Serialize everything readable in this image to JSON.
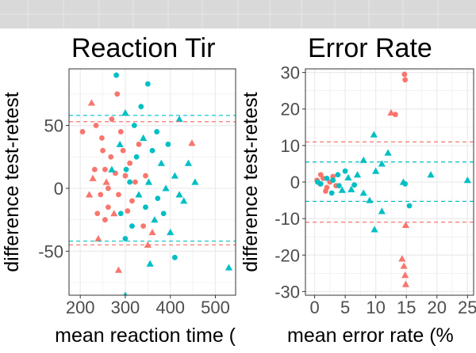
{
  "colors": {
    "group_a": "#F8766D",
    "group_b": "#00BFC4",
    "strip_bg": "#D9D9D9",
    "panel_bg": "#FFFFFF",
    "grid": "#EBEBEB",
    "border": "#333333"
  },
  "chart_data": [
    {
      "type": "scatter",
      "title": "Reaction Tir",
      "xlabel": "mean reaction time (",
      "ylabel": "difference test-retest",
      "xlim": [
        175,
        545
      ],
      "ylim": [
        -85,
        95
      ],
      "xticks": [
        {
          "v": 200,
          "label": "200"
        },
        {
          "v": 300,
          "label": "300"
        },
        {
          "v": 400,
          "label": "400"
        },
        {
          "v": 500,
          "label": "500"
        }
      ],
      "yticks": [
        {
          "v": -50,
          "label": "-50"
        },
        {
          "v": 0,
          "label": "0"
        },
        {
          "v": 50,
          "label": "50"
        }
      ],
      "grid": true,
      "reference_lines": [
        {
          "y": 53,
          "color": "#F8766D",
          "style": "dashed"
        },
        {
          "y": 58,
          "color": "#00BFC4",
          "style": "dashed"
        },
        {
          "y": -42,
          "color": "#00BFC4",
          "style": "dashed"
        },
        {
          "y": -45,
          "color": "#F8766D",
          "style": "dashed"
        }
      ],
      "series": [
        {
          "color": "#F8766D",
          "points": [
            {
              "x": 205,
              "y": 45,
              "shape": "circle"
            },
            {
              "x": 225,
              "y": 68,
              "shape": "triangle"
            },
            {
              "x": 235,
              "y": 50,
              "shape": "circle"
            },
            {
              "x": 228,
              "y": 8,
              "shape": "triangle"
            },
            {
              "x": 220,
              "y": -5,
              "shape": "triangle"
            },
            {
              "x": 240,
              "y": -40,
              "shape": "triangle"
            },
            {
              "x": 250,
              "y": 30,
              "shape": "circle"
            },
            {
              "x": 255,
              "y": 15,
              "shape": "circle"
            },
            {
              "x": 262,
              "y": 0,
              "shape": "circle"
            },
            {
              "x": 245,
              "y": -5,
              "shape": "circle"
            },
            {
              "x": 270,
              "y": 55,
              "shape": "circle"
            },
            {
              "x": 282,
              "y": 75,
              "shape": "circle"
            },
            {
              "x": 290,
              "y": 45,
              "shape": "circle"
            },
            {
              "x": 262,
              "y": -15,
              "shape": "circle"
            },
            {
              "x": 275,
              "y": -20,
              "shape": "triangle"
            },
            {
              "x": 255,
              "y": -25,
              "shape": "circle"
            },
            {
              "x": 285,
              "y": -5,
              "shape": "circle"
            },
            {
              "x": 300,
              "y": 10,
              "shape": "circle"
            },
            {
              "x": 310,
              "y": 20,
              "shape": "circle"
            },
            {
              "x": 295,
              "y": 30,
              "shape": "circle"
            },
            {
              "x": 315,
              "y": -10,
              "shape": "circle"
            },
            {
              "x": 330,
              "y": 35,
              "shape": "circle"
            },
            {
              "x": 340,
              "y": -30,
              "shape": "circle"
            },
            {
              "x": 350,
              "y": -45,
              "shape": "triangle"
            },
            {
              "x": 285,
              "y": -65,
              "shape": "triangle"
            },
            {
              "x": 360,
              "y": -35,
              "shape": "triangle"
            },
            {
              "x": 448,
              "y": 36,
              "shape": "triangle"
            },
            {
              "x": 345,
              "y": 10,
              "shape": "circle"
            },
            {
              "x": 248,
              "y": 40,
              "shape": "circle"
            },
            {
              "x": 268,
              "y": 25,
              "shape": "circle"
            },
            {
              "x": 232,
              "y": 15,
              "shape": "circle"
            },
            {
              "x": 238,
              "y": -20,
              "shape": "circle"
            },
            {
              "x": 258,
              "y": 5,
              "shape": "triangle"
            },
            {
              "x": 278,
              "y": 12,
              "shape": "circle"
            },
            {
              "x": 305,
              "y": -18,
              "shape": "circle"
            },
            {
              "x": 322,
              "y": 5,
              "shape": "circle"
            }
          ]
        },
        {
          "color": "#00BFC4",
          "points": [
            {
              "x": 280,
              "y": 90,
              "shape": "circle"
            },
            {
              "x": 350,
              "y": 83,
              "shape": "circle"
            },
            {
              "x": 300,
              "y": 60,
              "shape": "triangle"
            },
            {
              "x": 320,
              "y": 50,
              "shape": "circle"
            },
            {
              "x": 340,
              "y": 40,
              "shape": "triangle"
            },
            {
              "x": 360,
              "y": 30,
              "shape": "circle"
            },
            {
              "x": 380,
              "y": 20,
              "shape": "triangle"
            },
            {
              "x": 395,
              "y": 35,
              "shape": "circle"
            },
            {
              "x": 410,
              "y": 10,
              "shape": "triangle"
            },
            {
              "x": 420,
              "y": 55,
              "shape": "triangle"
            },
            {
              "x": 430,
              "y": -10,
              "shape": "triangle"
            },
            {
              "x": 455,
              "y": 5,
              "shape": "triangle"
            },
            {
              "x": 310,
              "y": 5,
              "shape": "circle"
            },
            {
              "x": 330,
              "y": -5,
              "shape": "triangle"
            },
            {
              "x": 345,
              "y": -15,
              "shape": "circle"
            },
            {
              "x": 365,
              "y": -25,
              "shape": "triangle"
            },
            {
              "x": 385,
              "y": -20,
              "shape": "circle"
            },
            {
              "x": 400,
              "y": -35,
              "shape": "triangle"
            },
            {
              "x": 410,
              "y": -55,
              "shape": "circle"
            },
            {
              "x": 355,
              "y": -60,
              "shape": "triangle"
            },
            {
              "x": 300,
              "y": -40,
              "shape": "circle"
            },
            {
              "x": 290,
              "y": -20,
              "shape": "circle"
            },
            {
              "x": 270,
              "y": 15,
              "shape": "triangle"
            },
            {
              "x": 325,
              "y": 25,
              "shape": "circle"
            },
            {
              "x": 370,
              "y": 45,
              "shape": "circle"
            },
            {
              "x": 390,
              "y": 0,
              "shape": "triangle"
            },
            {
              "x": 315,
              "y": -30,
              "shape": "circle"
            },
            {
              "x": 300,
              "y": -85,
              "shape": "triangle"
            },
            {
              "x": 530,
              "y": -63,
              "shape": "triangle"
            },
            {
              "x": 420,
              "y": -5,
              "shape": "triangle"
            },
            {
              "x": 440,
              "y": 20,
              "shape": "triangle"
            },
            {
              "x": 335,
              "y": 65,
              "shape": "circle"
            },
            {
              "x": 302,
              "y": 15,
              "shape": "circle"
            },
            {
              "x": 352,
              "y": 5,
              "shape": "triangle"
            },
            {
              "x": 372,
              "y": -8,
              "shape": "circle"
            },
            {
              "x": 288,
              "y": 35,
              "shape": "triangle"
            }
          ]
        }
      ]
    },
    {
      "type": "scatter",
      "title": "Error Rate",
      "xlabel": "mean error rate (%",
      "ylabel": "difference test-retest",
      "xlim": [
        -1.5,
        26
      ],
      "ylim": [
        -31,
        31
      ],
      "xticks": [
        {
          "v": 0,
          "label": "0"
        },
        {
          "v": 5,
          "label": "5"
        },
        {
          "v": 10,
          "label": "10"
        },
        {
          "v": 15,
          "label": "15"
        },
        {
          "v": 20,
          "label": "20"
        },
        {
          "v": 25,
          "label": "25"
        }
      ],
      "yticks": [
        {
          "v": -30,
          "label": "-30"
        },
        {
          "v": -20,
          "label": "-20"
        },
        {
          "v": -10,
          "label": "-10"
        },
        {
          "v": 0,
          "label": "0"
        },
        {
          "v": 10,
          "label": "10"
        },
        {
          "v": 20,
          "label": "20"
        },
        {
          "v": 30,
          "label": "30"
        }
      ],
      "grid": true,
      "reference_lines": [
        {
          "y": 11,
          "color": "#F8766D",
          "style": "dashed"
        },
        {
          "y": 5.5,
          "color": "#00BFC4",
          "style": "dashed"
        },
        {
          "y": -5.3,
          "color": "#00BFC4",
          "style": "dashed"
        },
        {
          "y": -11,
          "color": "#F8766D",
          "style": "dashed"
        }
      ],
      "series": [
        {
          "color": "#F8766D",
          "points": [
            {
              "x": 14.7,
              "y": 29.5,
              "shape": "circle"
            },
            {
              "x": 14.8,
              "y": 28,
              "shape": "circle"
            },
            {
              "x": 12.5,
              "y": 19,
              "shape": "triangle"
            },
            {
              "x": 13.2,
              "y": 18.5,
              "shape": "circle"
            },
            {
              "x": 14.9,
              "y": -11.8,
              "shape": "triangle"
            },
            {
              "x": 14.3,
              "y": -21,
              "shape": "triangle"
            },
            {
              "x": 14.6,
              "y": -23,
              "shape": "triangle"
            },
            {
              "x": 14.8,
              "y": -25.5,
              "shape": "triangle"
            },
            {
              "x": 14.9,
              "y": -28,
              "shape": "triangle"
            },
            {
              "x": 0.4,
              "y": 0.5,
              "shape": "circle"
            },
            {
              "x": 0.9,
              "y": -0.5,
              "shape": "circle"
            },
            {
              "x": 1.4,
              "y": 1.0,
              "shape": "circle"
            },
            {
              "x": 2.0,
              "y": -1.5,
              "shape": "circle"
            },
            {
              "x": 2.5,
              "y": 0.0,
              "shape": "circle"
            },
            {
              "x": 3.0,
              "y": 1.5,
              "shape": "circle"
            },
            {
              "x": 1.0,
              "y": 2.0,
              "shape": "circle"
            },
            {
              "x": 1.8,
              "y": -2.5,
              "shape": "circle"
            },
            {
              "x": 3.5,
              "y": -1.0,
              "shape": "circle"
            }
          ]
        },
        {
          "color": "#00BFC4",
          "points": [
            {
              "x": 9.7,
              "y": 13,
              "shape": "triangle"
            },
            {
              "x": 12,
              "y": 8,
              "shape": "triangle"
            },
            {
              "x": 11,
              "y": 5,
              "shape": "triangle"
            },
            {
              "x": 10,
              "y": 3,
              "shape": "triangle"
            },
            {
              "x": 8,
              "y": 6,
              "shape": "triangle"
            },
            {
              "x": 7,
              "y": 2,
              "shape": "triangle"
            },
            {
              "x": 5,
              "y": 3,
              "shape": "circle"
            },
            {
              "x": 4,
              "y": -1,
              "shape": "circle"
            },
            {
              "x": 6,
              "y": -2,
              "shape": "triangle"
            },
            {
              "x": 8,
              "y": -3,
              "shape": "triangle"
            },
            {
              "x": 9,
              "y": -5,
              "shape": "triangle"
            },
            {
              "x": 11,
              "y": -8,
              "shape": "triangle"
            },
            {
              "x": 9.8,
              "y": -13,
              "shape": "triangle"
            },
            {
              "x": 14.5,
              "y": 0,
              "shape": "triangle"
            },
            {
              "x": 14.8,
              "y": -0.5,
              "shape": "circle"
            },
            {
              "x": 15.5,
              "y": -6.5,
              "shape": "circle"
            },
            {
              "x": 19,
              "y": 2,
              "shape": "triangle"
            },
            {
              "x": 25,
              "y": 0.5,
              "shape": "triangle"
            },
            {
              "x": 3,
              "y": 0.5,
              "shape": "circle"
            },
            {
              "x": 2,
              "y": 1,
              "shape": "circle"
            },
            {
              "x": 1,
              "y": -0.5,
              "shape": "circle"
            },
            {
              "x": 0.5,
              "y": 0,
              "shape": "circle"
            },
            {
              "x": 3.8,
              "y": 2.0,
              "shape": "circle"
            },
            {
              "x": 4.5,
              "y": -2.2,
              "shape": "triangle"
            },
            {
              "x": 5.5,
              "y": 1.2,
              "shape": "triangle"
            },
            {
              "x": 6.5,
              "y": -0.8,
              "shape": "circle"
            },
            {
              "x": 2.8,
              "y": -3.0,
              "shape": "circle"
            }
          ]
        }
      ]
    }
  ]
}
